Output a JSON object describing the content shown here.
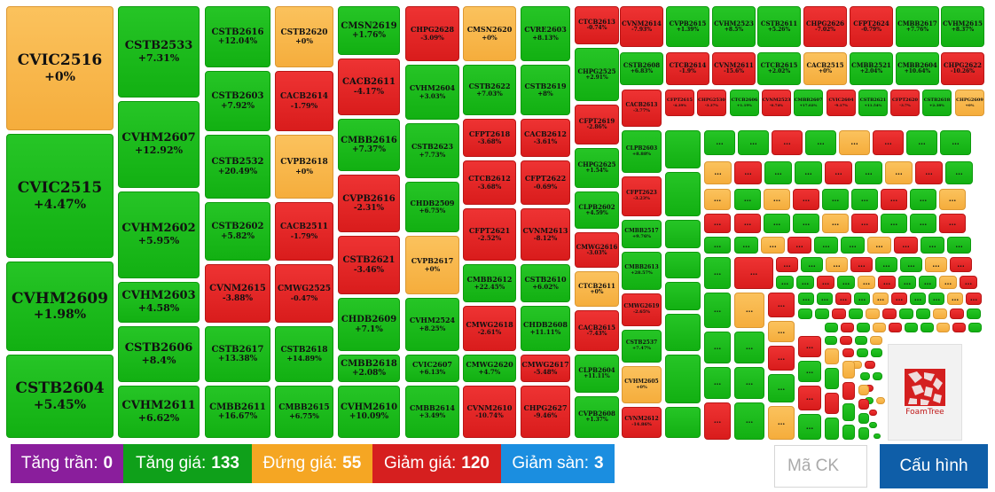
{
  "colors": {
    "green": "#1bbb1b",
    "red": "#e22626",
    "yellow": "#f8b84a",
    "ceiling": "#8a1e9c",
    "floor": "#1b8ee0",
    "rise": "#0fa01a",
    "ref": "#f5a623",
    "fall": "#d61f1f"
  },
  "tiles": [
    {
      "code": "CVIC2516",
      "change": "+0%",
      "color": "yellow"
    },
    {
      "code": "CVIC2515",
      "change": "+4.47%",
      "color": "green"
    },
    {
      "code": "CVHM2609",
      "change": "+1.98%",
      "color": "green"
    },
    {
      "code": "CSTB2604",
      "change": "+5.45%",
      "color": "green"
    },
    {
      "code": "CSTB2533",
      "change": "+7.31%",
      "color": "green"
    },
    {
      "code": "CVHM2607",
      "change": "+12.92%",
      "color": "green"
    },
    {
      "code": "CVHM2602",
      "change": "+5.95%",
      "color": "green"
    },
    {
      "code": "CVHM2603",
      "change": "+4.58%",
      "color": "green"
    },
    {
      "code": "CSTB2606",
      "change": "+8.4%",
      "color": "green"
    },
    {
      "code": "CVHM2611",
      "change": "+6.62%",
      "color": "green"
    },
    {
      "code": "CSTB2616",
      "change": "+12.04%",
      "color": "green"
    },
    {
      "code": "CSTB2603",
      "change": "+7.92%",
      "color": "green"
    },
    {
      "code": "CSTB2532",
      "change": "+20.49%",
      "color": "green"
    },
    {
      "code": "CSTB2602",
      "change": "+5.82%",
      "color": "green"
    },
    {
      "code": "CVNM2615",
      "change": "-3.88%",
      "color": "red"
    },
    {
      "code": "CSTB2617",
      "change": "+13.38%",
      "color": "green"
    },
    {
      "code": "CMBB2611",
      "change": "+16.67%",
      "color": "green"
    },
    {
      "code": "CSTB2620",
      "change": "+0%",
      "color": "yellow"
    },
    {
      "code": "CACB2614",
      "change": "-1.79%",
      "color": "red"
    },
    {
      "code": "CVPB2618",
      "change": "+0%",
      "color": "yellow"
    },
    {
      "code": "CACB2511",
      "change": "-1.79%",
      "color": "red"
    },
    {
      "code": "CMWG2525",
      "change": "-0.47%",
      "color": "red"
    },
    {
      "code": "CSTB2618",
      "change": "+14.89%",
      "color": "green"
    },
    {
      "code": "CMBB2615",
      "change": "+6.75%",
      "color": "green"
    },
    {
      "code": "CMSN2619",
      "change": "+1.76%",
      "color": "green"
    },
    {
      "code": "CACB2611",
      "change": "-4.17%",
      "color": "red"
    },
    {
      "code": "CMBB2616",
      "change": "+7.37%",
      "color": "green"
    },
    {
      "code": "CVPB2616",
      "change": "-2.31%",
      "color": "red"
    },
    {
      "code": "CSTB2621",
      "change": "-3.46%",
      "color": "red"
    },
    {
      "code": "CHDB2609",
      "change": "+7.1%",
      "color": "green"
    },
    {
      "code": "CMBB2618",
      "change": "+2.08%",
      "color": "green"
    },
    {
      "code": "CVHM2610",
      "change": "+10.09%",
      "color": "green"
    },
    {
      "code": "CHPG2628",
      "change": "-3.09%",
      "color": "red"
    },
    {
      "code": "CVHM2604",
      "change": "+3.03%",
      "color": "green"
    },
    {
      "code": "CSTB2623",
      "change": "+7.73%",
      "color": "green"
    },
    {
      "code": "CHDB2509",
      "change": "+6.75%",
      "color": "green"
    },
    {
      "code": "CVPB2617",
      "change": "+0%",
      "color": "yellow"
    },
    {
      "code": "CVHM2524",
      "change": "+8.25%",
      "color": "green"
    },
    {
      "code": "CVIC2607",
      "change": "+6.13%",
      "color": "green"
    },
    {
      "code": "CMBB2614",
      "change": "+3.49%",
      "color": "green"
    },
    {
      "code": "CMSN2620",
      "change": "+0%",
      "color": "yellow"
    },
    {
      "code": "CSTB2622",
      "change": "+7.03%",
      "color": "green"
    },
    {
      "code": "CFPT2618",
      "change": "-3.68%",
      "color": "red"
    },
    {
      "code": "CTCB2612",
      "change": "-3.68%",
      "color": "red"
    },
    {
      "code": "CFPT2621",
      "change": "-2.52%",
      "color": "red"
    },
    {
      "code": "CMBB2612",
      "change": "+22.45%",
      "color": "green"
    },
    {
      "code": "CMWG2618",
      "change": "-2.61%",
      "color": "red"
    },
    {
      "code": "CMWG2620",
      "change": "+4.7%",
      "color": "green"
    },
    {
      "code": "CVNM2610",
      "change": "-10.74%",
      "color": "red"
    },
    {
      "code": "CVRE2603",
      "change": "+8.13%",
      "color": "green"
    },
    {
      "code": "CSTB2619",
      "change": "+8%",
      "color": "green"
    },
    {
      "code": "CACB2612",
      "change": "-3.61%",
      "color": "red"
    },
    {
      "code": "CFPT2622",
      "change": "-0.69%",
      "color": "red"
    },
    {
      "code": "CVNM2613",
      "change": "-8.12%",
      "color": "red"
    },
    {
      "code": "CSTB2610",
      "change": "+6.02%",
      "color": "green"
    },
    {
      "code": "CHDB2608",
      "change": "+11.11%",
      "color": "green"
    },
    {
      "code": "CMWG2617",
      "change": "-5.48%",
      "color": "red"
    },
    {
      "code": "CHPG2627",
      "change": "-9.46%",
      "color": "red"
    },
    {
      "code": "CTCB2613",
      "change": "-0.74%",
      "color": "red"
    },
    {
      "code": "CHPG2525",
      "change": "+2.91%",
      "color": "green"
    },
    {
      "code": "CFPT2619",
      "change": "-2.86%",
      "color": "red"
    },
    {
      "code": "CHPG2625",
      "change": "+1.54%",
      "color": "green"
    },
    {
      "code": "CLPB2602",
      "change": "+4.59%",
      "color": "green"
    },
    {
      "code": "CMWG2616",
      "change": "-3.03%",
      "color": "red"
    },
    {
      "code": "CTCB2611",
      "change": "+0%",
      "color": "yellow"
    },
    {
      "code": "CACB2615",
      "change": "-7.43%",
      "color": "red"
    },
    {
      "code": "CLPB2604",
      "change": "+11.11%",
      "color": "green"
    },
    {
      "code": "CVPB2608",
      "change": "+1.37%",
      "color": "green"
    },
    {
      "code": "CVNM2614",
      "change": "-7.93%",
      "color": "red"
    },
    {
      "code": "CVPB2615",
      "change": "+1.39%",
      "color": "green"
    },
    {
      "code": "CVHM2523",
      "change": "+8.5%",
      "color": "green"
    },
    {
      "code": "CSTB2611",
      "change": "+5.26%",
      "color": "green"
    },
    {
      "code": "CHPG2626",
      "change": "-7.02%",
      "color": "red"
    },
    {
      "code": "CFPT2624",
      "change": "-0.79%",
      "color": "red"
    },
    {
      "code": "CMBB2617",
      "change": "+7.76%",
      "color": "green"
    },
    {
      "code": "CVHM2615",
      "change": "+8.37%",
      "color": "green"
    },
    {
      "code": "CSTB2608",
      "change": "+6.83%",
      "color": "green"
    },
    {
      "code": "CTCB2614",
      "change": "-1.9%",
      "color": "red"
    },
    {
      "code": "CVNM2611",
      "change": "-15.6%",
      "color": "red"
    },
    {
      "code": "CTCB2615",
      "change": "+2.02%",
      "color": "green"
    },
    {
      "code": "CACB2515",
      "change": "+0%",
      "color": "yellow"
    },
    {
      "code": "CMBB2521",
      "change": "+2.04%",
      "color": "green"
    },
    {
      "code": "CMBB2604",
      "change": "+10.64%",
      "color": "green"
    },
    {
      "code": "CHPG2622",
      "change": "-10.26%",
      "color": "red"
    },
    {
      "code": "CFPT2615",
      "change": "-4.39%",
      "color": "red"
    },
    {
      "code": "CHPG2530",
      "change": "-3.37%",
      "color": "red"
    },
    {
      "code": "CTCB2606",
      "change": "+1.19%",
      "color": "green"
    },
    {
      "code": "CVNM2523",
      "change": "-0.74%",
      "color": "red"
    },
    {
      "code": "CMBB2607",
      "change": "+17.02%",
      "color": "green"
    },
    {
      "code": "CVIC2604",
      "change": "-9.17%",
      "color": "red"
    },
    {
      "code": "CSTB2621",
      "change": "+11.54%",
      "color": "green"
    },
    {
      "code": "CFPT2620",
      "change": "-3.7%",
      "color": "red"
    },
    {
      "code": "CSTB2618",
      "change": "+2.38%",
      "color": "green"
    },
    {
      "code": "CHPG2609",
      "change": "+0%",
      "color": "yellow"
    },
    {
      "code": "CACB2613",
      "change": "-3.77%",
      "color": "red"
    },
    {
      "code": "CLPB2603",
      "change": "+8.88%",
      "color": "green"
    },
    {
      "code": "CFPT2623",
      "change": "-3.23%",
      "color": "red"
    },
    {
      "code": "CMBB2517",
      "change": "+9.76%",
      "color": "green"
    },
    {
      "code": "CMBB2613",
      "change": "+28.57%",
      "color": "green"
    },
    {
      "code": "CMWG2619",
      "change": "-2.65%",
      "color": "red"
    },
    {
      "code": "CSTB2537",
      "change": "+7.47%",
      "color": "green"
    },
    {
      "code": "CVHM2605",
      "change": "+0%",
      "color": "yellow"
    },
    {
      "code": "CVNM2612",
      "change": "-14.86%",
      "color": "red"
    }
  ],
  "more_label": "...",
  "logo": {
    "text": "FoamTree"
  },
  "footer": {
    "ceiling_label": "Tăng trần:",
    "ceiling_count": "0",
    "rise_label": "Tăng giá:",
    "rise_count": "133",
    "ref_label": "Đứng giá:",
    "ref_count": "55",
    "fall_label": "Giảm giá:",
    "fall_count": "120",
    "floor_label": "Giảm sàn:",
    "floor_count": "3",
    "search_placeholder": "Mã CK",
    "config_label": "Cấu hình"
  }
}
